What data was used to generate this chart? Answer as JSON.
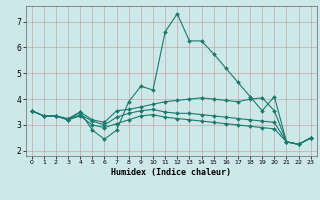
{
  "title": "",
  "xlabel": "Humidex (Indice chaleur)",
  "background_color": "#cce8e8",
  "grid_color": "#c8a8a8",
  "line_color": "#1a7a6e",
  "xlim": [
    -0.5,
    23.5
  ],
  "ylim": [
    1.8,
    7.6
  ],
  "xticks": [
    0,
    1,
    2,
    3,
    4,
    5,
    6,
    7,
    8,
    9,
    10,
    11,
    12,
    13,
    14,
    15,
    16,
    17,
    18,
    19,
    20,
    21,
    22,
    23
  ],
  "yticks": [
    2,
    3,
    4,
    5,
    6,
    7
  ],
  "series": [
    [
      3.55,
      3.35,
      3.35,
      3.25,
      3.5,
      2.8,
      2.45,
      2.8,
      3.9,
      4.5,
      4.35,
      6.6,
      7.3,
      6.25,
      6.25,
      5.75,
      5.2,
      4.65,
      4.1,
      3.55,
      4.1,
      2.35,
      2.25,
      2.5
    ],
    [
      3.55,
      3.35,
      3.35,
      3.2,
      3.5,
      3.2,
      3.1,
      3.55,
      3.6,
      3.7,
      3.8,
      3.9,
      3.95,
      4.0,
      4.05,
      4.0,
      3.95,
      3.9,
      4.0,
      4.05,
      3.55,
      2.35,
      2.25,
      2.5
    ],
    [
      3.55,
      3.35,
      3.35,
      3.2,
      3.4,
      3.15,
      3.0,
      3.3,
      3.45,
      3.55,
      3.6,
      3.5,
      3.45,
      3.45,
      3.4,
      3.35,
      3.3,
      3.25,
      3.2,
      3.15,
      3.1,
      2.35,
      2.25,
      2.5
    ],
    [
      3.55,
      3.35,
      3.35,
      3.2,
      3.35,
      3.0,
      2.9,
      3.05,
      3.2,
      3.35,
      3.4,
      3.3,
      3.25,
      3.2,
      3.15,
      3.1,
      3.05,
      3.0,
      2.95,
      2.9,
      2.85,
      2.35,
      2.25,
      2.5
    ]
  ]
}
